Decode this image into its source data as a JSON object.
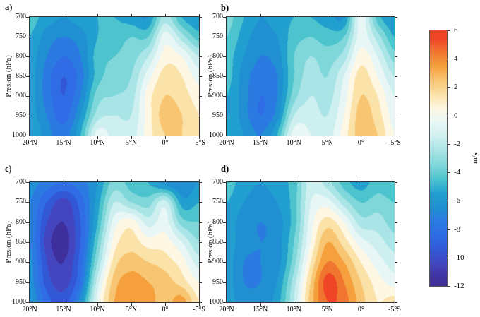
{
  "figure": {
    "background": "#ffffff",
    "panels": [
      {
        "label": "a)",
        "ylabel": "Presión (hPa)"
      },
      {
        "label": "b)",
        "ylabel": "Presión (hPa)"
      },
      {
        "label": "c)",
        "ylabel": "Presión (hPa)"
      },
      {
        "label": "d)",
        "ylabel": "Presión (hPa)"
      }
    ],
    "colorbar": {
      "unit": "m/s",
      "min": -12,
      "max": 6,
      "tick_labels": [
        "6",
        "4",
        "2",
        "0",
        "-2",
        "-4",
        "-6",
        "-8",
        "-10",
        "-12"
      ],
      "tick_values": [
        6,
        4,
        2,
        0,
        -2,
        -4,
        -6,
        -8,
        -10,
        -12
      ]
    }
  },
  "colormap": {
    "levels_min": -12,
    "levels_max": 6,
    "band_step_mps": 1,
    "band_colors": [
      "#40309e",
      "#4446c0",
      "#3358d6",
      "#2f6ce6",
      "#2b7ae2",
      "#2090d3",
      "#21a0cf",
      "#4cc3cd",
      "#7fd7da",
      "#a9e4e6",
      "#cdefef",
      "#e8f7f6",
      "#fdf7e4",
      "#fbe2a8",
      "#f8c672",
      "#f5a03c",
      "#f0762f",
      "#ef4425"
    ]
  },
  "chart_data": [
    {
      "type": "heatmap",
      "panel_label": "a)",
      "ylabel": "Presión (hPa)",
      "unit": "m/s",
      "xtick_labels": [
        "20°N",
        "15°N",
        "10°N",
        "5°N",
        "0°",
        "-5°S"
      ],
      "ytick_labels": [
        "700",
        "750",
        "800",
        "850",
        "900",
        "950",
        "1000"
      ],
      "x_lat_deg": [
        20,
        17.5,
        15,
        12.5,
        10,
        7.5,
        5,
        2.5,
        0,
        -2.5,
        -5
      ],
      "y_pressure_hPa": [
        700,
        750,
        800,
        850,
        900,
        950,
        1000
      ],
      "values_mps": [
        [
          -4.5,
          -5.5,
          -6,
          -5.5,
          -5,
          -5,
          -5.5,
          -6,
          -2.5,
          -5,
          -6
        ],
        [
          -5,
          -6.5,
          -7,
          -6.5,
          -5,
          -4.5,
          -4,
          -4,
          -0.5,
          -2.5,
          -4.5
        ],
        [
          -5.5,
          -7,
          -8,
          -7,
          -4.5,
          -4,
          -3.5,
          -2,
          0.5,
          0,
          -2
        ],
        [
          -5.5,
          -7.5,
          -9,
          -7.5,
          -4.5,
          -3.5,
          -3,
          -0.5,
          1.5,
          1,
          -0.5
        ],
        [
          -5.5,
          -7.5,
          -9,
          -7,
          -3.5,
          -3,
          -2.5,
          0.5,
          2,
          1.5,
          0.5
        ],
        [
          -5.5,
          -7,
          -8.5,
          -6,
          -2.5,
          -2,
          -2,
          0.5,
          2.5,
          2,
          1
        ],
        [
          -5,
          -6.5,
          -7.5,
          -5,
          -0.5,
          -1.5,
          -1.5,
          0.5,
          2,
          2,
          1
        ]
      ]
    },
    {
      "type": "heatmap",
      "panel_label": "b)",
      "ylabel": "Presión (hPa)",
      "unit": "m/s",
      "xtick_labels": [
        "20°N",
        "15°N",
        "10°N",
        "5°N",
        "0°",
        "-5°S"
      ],
      "ytick_labels": [
        "700",
        "750",
        "800",
        "850",
        "900",
        "950",
        "1000"
      ],
      "x_lat_deg": [
        20,
        17.5,
        15,
        12.5,
        10,
        7.5,
        5,
        2.5,
        0,
        -2.5,
        -5
      ],
      "y_pressure_hPa": [
        700,
        750,
        800,
        850,
        900,
        950,
        1000
      ],
      "values_mps": [
        [
          -3.5,
          -5,
          -6,
          -5.5,
          -5,
          -5,
          -5.5,
          -6,
          -0.5,
          -4.5,
          -6
        ],
        [
          -4,
          -5.5,
          -6.5,
          -6,
          -4.5,
          -4,
          -4.5,
          -4,
          -0.5,
          -2.5,
          -5
        ],
        [
          -4.5,
          -6,
          -7,
          -6.5,
          -4,
          -3,
          -3.5,
          -2.5,
          0.5,
          -1,
          -3.5
        ],
        [
          -4.5,
          -6.5,
          -7.5,
          -7,
          -4,
          -2.5,
          -3,
          -1,
          1.5,
          0,
          -2
        ],
        [
          -5,
          -6.5,
          -8,
          -7,
          -3.5,
          -2,
          -2.5,
          -0.5,
          2,
          1,
          -1
        ],
        [
          -5,
          -6.5,
          -8,
          -6.5,
          -2,
          -1.5,
          -2,
          0,
          2.5,
          1.5,
          -0.5
        ],
        [
          -5,
          -6,
          -7,
          -5,
          -0.5,
          -1,
          -1.5,
          0.5,
          2.5,
          2,
          0
        ]
      ]
    },
    {
      "type": "heatmap",
      "panel_label": "c)",
      "ylabel": "Presión (hPa)",
      "unit": "m/s",
      "xtick_labels": [
        "20°N",
        "15°N",
        "10°N",
        "5°N",
        "0°",
        "-5°S"
      ],
      "ytick_labels": [
        "700",
        "750",
        "800",
        "850",
        "900",
        "950",
        "1000"
      ],
      "x_lat_deg": [
        20,
        17.5,
        15,
        12.5,
        10,
        7.5,
        5,
        2.5,
        0,
        -2.5,
        -5
      ],
      "y_pressure_hPa": [
        700,
        750,
        800,
        850,
        900,
        950,
        1000
      ],
      "values_mps": [
        [
          -6.5,
          -7.5,
          -8,
          -7.5,
          -6,
          -3.5,
          -4.5,
          -5,
          -6.5,
          -7,
          -6
        ],
        [
          -7,
          -9,
          -10.5,
          -8.5,
          -5.5,
          -2,
          -3,
          -3.5,
          -1.5,
          -5.5,
          -5
        ],
        [
          -7,
          -10,
          -11,
          -9,
          -5,
          -0.5,
          0.5,
          -1.5,
          -0.5,
          -3.5,
          -4
        ],
        [
          -7,
          -10.5,
          -11.5,
          -9,
          -4,
          0.5,
          1.5,
          0.5,
          0.5,
          -1,
          -3
        ],
        [
          -6.5,
          -10,
          -11,
          -8.5,
          -3,
          1.5,
          2.5,
          2,
          1.5,
          0.5,
          -1.5
        ],
        [
          -6.5,
          -9.5,
          -10.5,
          -8,
          -1.5,
          2.5,
          3.5,
          3,
          2.5,
          1.5,
          0
        ],
        [
          -6,
          -8.5,
          -9.5,
          -6.5,
          -0.5,
          3,
          4,
          3.5,
          2.5,
          3.5,
          1
        ]
      ]
    },
    {
      "type": "heatmap",
      "panel_label": "d)",
      "ylabel": "Presión (hPa)",
      "unit": "m/s",
      "xtick_labels": [
        "20°N",
        "15°N",
        "10°N",
        "5°N",
        "0°",
        "-5°S"
      ],
      "ytick_labels": [
        "700",
        "750",
        "800",
        "850",
        "900",
        "950",
        "1000"
      ],
      "x_lat_deg": [
        20,
        17.5,
        15,
        12.5,
        10,
        7.5,
        5,
        2.5,
        0,
        -2.5,
        -5
      ],
      "y_pressure_hPa": [
        700,
        750,
        800,
        850,
        900,
        950,
        1000
      ],
      "values_mps": [
        [
          -4.5,
          -5.5,
          -6,
          -5.5,
          -4.5,
          -1.5,
          -2.5,
          -4.5,
          -5.5,
          -4.5,
          -5
        ],
        [
          -5,
          -6,
          -6.5,
          -6,
          -4.5,
          -1,
          -0.5,
          -2.5,
          -4,
          -3.5,
          -4
        ],
        [
          -5.5,
          -6.5,
          -7,
          -6.5,
          -4.5,
          -0.5,
          1.5,
          0,
          -2.5,
          -2.5,
          -3.5
        ],
        [
          -5.5,
          -6.5,
          -7,
          -6.5,
          -4,
          0,
          3,
          1.5,
          -0.5,
          -1.5,
          -2.5
        ],
        [
          -5.5,
          -7,
          -7,
          -6.5,
          -3.5,
          1,
          4,
          3,
          1,
          -0.5,
          -1.5
        ],
        [
          -5.5,
          -7,
          -7,
          -6,
          -2.5,
          2,
          5.5,
          4,
          2,
          0.5,
          -0.5
        ],
        [
          -5.5,
          -6.5,
          -6.5,
          -5.5,
          -2,
          2.5,
          5,
          4.5,
          2.5,
          1,
          1.5
        ]
      ]
    }
  ]
}
